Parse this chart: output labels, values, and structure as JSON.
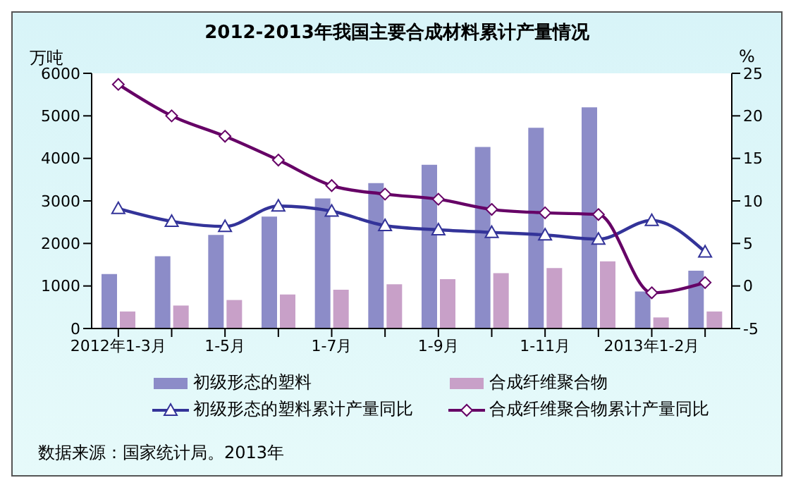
{
  "chart_data": {
    "type": "bar",
    "title": "2012-2013年我国主要合成材料累计产量情况",
    "ylabel": "万吨",
    "y2label": "%",
    "categories": [
      "2012年1-3月",
      null,
      "1-5月",
      null,
      "1-7月",
      null,
      "1-9月",
      null,
      "1-11月",
      null,
      "2013年1-2月",
      null
    ],
    "series": [
      {
        "name": "初级形态的塑料",
        "color": "#8c8cc8",
        "values": [
          1280,
          1700,
          2200,
          2630,
          3060,
          3420,
          3850,
          4270,
          4720,
          5200,
          870,
          1360
        ]
      },
      {
        "name": "合成纤维聚合物",
        "color": "#c8a0c8",
        "values": [
          400,
          540,
          670,
          800,
          910,
          1040,
          1160,
          1300,
          1420,
          1580,
          260,
          400
        ]
      },
      {
        "name": "初级形态的塑料累计产量同比",
        "type": "line",
        "axis": "y2",
        "marker": "triangle",
        "color": "#333399",
        "values": [
          9.1,
          7.6,
          7.0,
          9.4,
          8.8,
          7.1,
          6.6,
          6.3,
          6.0,
          5.5,
          7.7,
          4.0
        ]
      },
      {
        "name": "合成纤维聚合物累计产量同比",
        "type": "line",
        "axis": "y2",
        "marker": "diamond",
        "color": "#660066",
        "values": [
          23.7,
          20.0,
          17.6,
          14.8,
          11.8,
          10.8,
          10.2,
          9.0,
          8.6,
          8.4,
          -0.8,
          0.4
        ]
      }
    ],
    "ylim": [
      0,
      6000
    ],
    "yticks": [
      0,
      1000,
      2000,
      3000,
      4000,
      5000,
      6000
    ],
    "y2lim": [
      -5,
      25
    ],
    "y2ticks": [
      -5,
      0,
      5,
      10,
      15,
      20,
      25
    ],
    "legend": "bottom",
    "annotations": [
      "数据来源：国家统计局。2013年"
    ]
  }
}
